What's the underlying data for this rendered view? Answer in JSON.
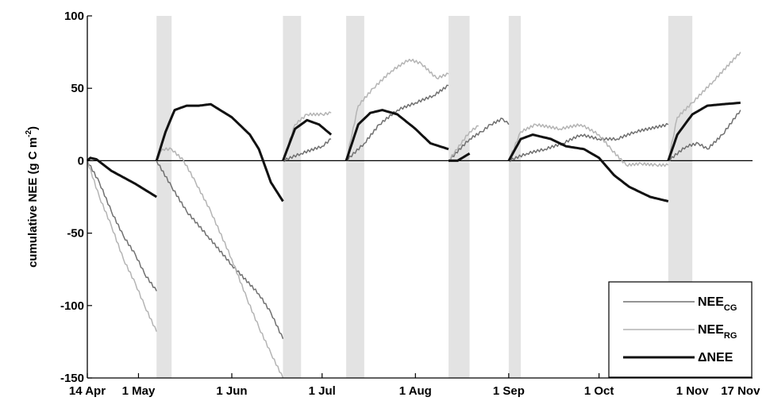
{
  "chart_data": {
    "type": "line",
    "title": "",
    "ylabel_main": "cumulative NEE (g C m",
    "ylabel_sup": "-2",
    "ylabel_end": ")",
    "ylim": [
      -150,
      100
    ],
    "yticks": [
      100,
      50,
      0,
      -50,
      -100,
      -150
    ],
    "xlim": [
      "14 Apr",
      "21 Nov"
    ],
    "xticks": [
      {
        "date": "14 Apr",
        "label": "14 Apr"
      },
      {
        "date": "1 May",
        "label": "1 May"
      },
      {
        "date": "1 Jun",
        "label": "1 Jun"
      },
      {
        "date": "1 Jul",
        "label": "1 Jul"
      },
      {
        "date": "1 Aug",
        "label": "1 Aug"
      },
      {
        "date": "1 Sep",
        "label": "1 Sep"
      },
      {
        "date": "1 Oct",
        "label": "1 Oct"
      },
      {
        "date": "1 Nov",
        "label": "1 Nov"
      },
      {
        "date": "17 Nov",
        "label": "17 Nov"
      }
    ],
    "gaps": [
      {
        "start": "7 May",
        "end": "12 May"
      },
      {
        "start": "18 Jun",
        "end": "24 Jun"
      },
      {
        "start": "9 Jul",
        "end": "15 Jul"
      },
      {
        "start": "12 Aug",
        "end": "19 Aug"
      },
      {
        "start": "1 Sep",
        "end": "5 Sep"
      },
      {
        "start": "24 Oct",
        "end": "1 Nov"
      }
    ],
    "legend_position": "bottom-right",
    "series": [
      {
        "name": "NEE",
        "subscript": "CG",
        "color": "#707070",
        "width": 1.5,
        "segments": [
          [
            [
              "14 Apr",
              0
            ],
            [
              "18 Apr",
              -15
            ],
            [
              "22 Apr",
              -35
            ],
            [
              "26 Apr",
              -52
            ],
            [
              "30 Apr",
              -65
            ],
            [
              "3 May",
              -78
            ],
            [
              "7 May",
              -90
            ]
          ],
          [
            [
              "7 May",
              0
            ],
            [
              "12 May",
              -18
            ],
            [
              "17 May",
              -35
            ],
            [
              "24 May",
              -52
            ],
            [
              "1 Jun",
              -72
            ],
            [
              "10 Jun",
              -92
            ],
            [
              "14 Jun",
              -105
            ],
            [
              "18 Jun",
              -123
            ]
          ],
          [
            [
              "18 Jun",
              0
            ],
            [
              "24 Jun",
              5
            ],
            [
              "1 Jul",
              10
            ],
            [
              "4 Jul",
              15
            ]
          ],
          [
            [
              "9 Jul",
              0
            ],
            [
              "15 Jul",
              12
            ],
            [
              "20 Jul",
              25
            ],
            [
              "26 Jul",
              35
            ],
            [
              "1 Aug",
              40
            ],
            [
              "7 Aug",
              45
            ],
            [
              "12 Aug",
              52
            ]
          ],
          [
            [
              "12 Aug",
              0
            ],
            [
              "19 Aug",
              15
            ],
            [
              "23 Aug",
              20
            ],
            [
              "26 Aug",
              25
            ],
            [
              "30 Aug",
              29
            ],
            [
              "1 Sep",
              25
            ]
          ],
          [
            [
              "1 Sep",
              0
            ],
            [
              "7 Sep",
              5
            ],
            [
              "13 Sep",
              8
            ],
            [
              "19 Sep",
              12
            ],
            [
              "25 Sep",
              18
            ],
            [
              "1 Oct",
              15
            ],
            [
              "7 Oct",
              15
            ],
            [
              "13 Oct",
              20
            ],
            [
              "24 Oct",
              25
            ]
          ],
          [
            [
              "24 Oct",
              0
            ],
            [
              "30 Oct",
              10
            ],
            [
              "3 Nov",
              12
            ],
            [
              "6 Nov",
              8
            ],
            [
              "11 Nov",
              18
            ],
            [
              "17 Nov",
              35
            ]
          ]
        ]
      },
      {
        "name": "NEE",
        "subscript": "RG",
        "color": "#b4b4b4",
        "width": 1.5,
        "segments": [
          [
            [
              "14 Apr",
              0
            ],
            [
              "18 Apr",
              -25
            ],
            [
              "22 Apr",
              -45
            ],
            [
              "26 Apr",
              -68
            ],
            [
              "30 Apr",
              -85
            ],
            [
              "3 May",
              -100
            ],
            [
              "7 May",
              -118
            ]
          ],
          [
            [
              "7 May",
              0
            ],
            [
              "9 May",
              8
            ],
            [
              "12 May",
              8
            ],
            [
              "16 May",
              0
            ],
            [
              "20 May",
              -15
            ],
            [
              "25 May",
              -35
            ],
            [
              "1 Jun",
              -68
            ],
            [
              "6 Jun",
              -95
            ],
            [
              "10 Jun",
              -115
            ],
            [
              "14 Jun",
              -133
            ],
            [
              "18 Jun",
              -150
            ]
          ],
          [
            [
              "18 Jun",
              0
            ],
            [
              "22 Jun",
              25
            ],
            [
              "26 Jun",
              32
            ],
            [
              "1 Jul",
              32
            ],
            [
              "4 Jul",
              33
            ]
          ],
          [
            [
              "9 Jul",
              0
            ],
            [
              "13 Jul",
              38
            ],
            [
              "18 Jul",
              50
            ],
            [
              "24 Jul",
              62
            ],
            [
              "30 Jul",
              70
            ],
            [
              "3 Aug",
              67
            ],
            [
              "8 Aug",
              57
            ],
            [
              "12 Aug",
              60
            ]
          ],
          [
            [
              "12 Aug",
              0
            ],
            [
              "19 Aug",
              20
            ],
            [
              "22 Aug",
              24
            ]
          ],
          [
            [
              "1 Sep",
              0
            ],
            [
              "5 Sep",
              20
            ],
            [
              "10 Sep",
              25
            ],
            [
              "18 Sep",
              22
            ],
            [
              "25 Sep",
              25
            ],
            [
              "1 Oct",
              18
            ],
            [
              "5 Oct",
              8
            ],
            [
              "10 Oct",
              -3
            ],
            [
              "15 Oct",
              -2
            ],
            [
              "20 Oct",
              -3
            ],
            [
              "24 Oct",
              -3
            ]
          ],
          [
            [
              "24 Oct",
              0
            ],
            [
              "27 Oct",
              30
            ],
            [
              "1 Nov",
              40
            ],
            [
              "8 Nov",
              55
            ],
            [
              "17 Nov",
              75
            ]
          ]
        ]
      },
      {
        "name": "ΔNEE",
        "subscript": "",
        "color": "#111111",
        "width": 3,
        "segments": [
          [
            [
              "14 Apr",
              0
            ],
            [
              "15 Apr",
              2
            ],
            [
              "17 Apr",
              1
            ],
            [
              "22 Apr",
              -7
            ],
            [
              "30 Apr",
              -16
            ],
            [
              "7 May",
              -25
            ]
          ],
          [
            [
              "7 May",
              0
            ],
            [
              "10 May",
              20
            ],
            [
              "13 May",
              35
            ],
            [
              "17 May",
              38
            ],
            [
              "21 May",
              38
            ],
            [
              "25 May",
              39
            ],
            [
              "1 Jun",
              30
            ],
            [
              "7 Jun",
              18
            ],
            [
              "10 Jun",
              8
            ],
            [
              "14 Jun",
              -15
            ],
            [
              "18 Jun",
              -28
            ]
          ],
          [
            [
              "18 Jun",
              0
            ],
            [
              "22 Jun",
              22
            ],
            [
              "26 Jun",
              28
            ],
            [
              "30 Jun",
              25
            ],
            [
              "4 Jul",
              18
            ]
          ],
          [
            [
              "9 Jul",
              0
            ],
            [
              "13 Jul",
              25
            ],
            [
              "17 Jul",
              33
            ],
            [
              "21 Jul",
              35
            ],
            [
              "26 Jul",
              32
            ],
            [
              "1 Aug",
              22
            ],
            [
              "6 Aug",
              12
            ],
            [
              "12 Aug",
              8
            ]
          ],
          [
            [
              "12 Aug",
              0
            ],
            [
              "15 Aug",
              0
            ],
            [
              "19 Aug",
              5
            ]
          ],
          [
            [
              "1 Sep",
              0
            ],
            [
              "5 Sep",
              15
            ],
            [
              "9 Sep",
              18
            ],
            [
              "15 Sep",
              15
            ],
            [
              "20 Sep",
              10
            ],
            [
              "26 Sep",
              8
            ],
            [
              "1 Oct",
              2
            ],
            [
              "6 Oct",
              -10
            ],
            [
              "11 Oct",
              -18
            ],
            [
              "18 Oct",
              -25
            ],
            [
              "24 Oct",
              -28
            ]
          ],
          [
            [
              "24 Oct",
              0
            ],
            [
              "27 Oct",
              18
            ],
            [
              "1 Nov",
              32
            ],
            [
              "6 Nov",
              38
            ],
            [
              "11 Nov",
              39
            ],
            [
              "17 Nov",
              40
            ]
          ]
        ]
      }
    ]
  }
}
